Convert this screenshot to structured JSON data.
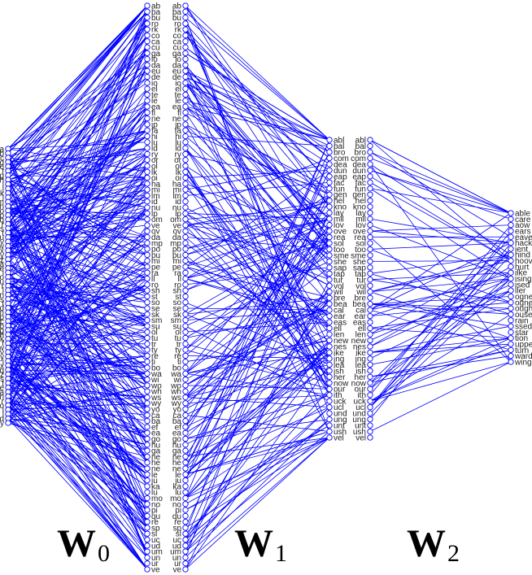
{
  "accent_color": "#0000ff",
  "captions": [
    {
      "main": "W",
      "sub": "0"
    },
    {
      "main": "W",
      "sub": "1"
    },
    {
      "main": "W",
      "sub": "2"
    }
  ],
  "layers": [
    {
      "labels": [
        "a",
        "b",
        "c",
        "d",
        "e",
        "f",
        "g",
        "h",
        "i",
        "j",
        "k",
        "l",
        "m",
        "n",
        "o",
        "p",
        "q",
        "r",
        "s",
        "t",
        "u",
        "v",
        "w",
        "x",
        "y",
        "z",
        "a",
        "e",
        "i",
        "o",
        "u",
        "r",
        "l",
        "n",
        "s",
        "t",
        "d",
        "m",
        "p",
        "c",
        "b",
        "g",
        "h",
        "k",
        "f",
        "w",
        "v",
        "y",
        "j",
        "x",
        "q",
        "z",
        "s",
        "t",
        "e",
        "a",
        "n",
        "r",
        "o",
        "i",
        "l",
        "d",
        "y"
      ],
      "side": "left"
    },
    {
      "labels": [
        "ab",
        "ba",
        "bu",
        "ro",
        "rk",
        "co",
        "ca",
        "cu",
        "ga",
        "lo",
        "da",
        "eu",
        "de",
        "io",
        "el",
        "te",
        "le",
        "ea",
        "fl",
        "ne",
        "ip",
        "fa",
        "hi",
        "lu",
        "ld",
        "ry",
        "or",
        "ol",
        "lk",
        "oi",
        "ha",
        "mi",
        "lm",
        "id",
        "nu",
        "lp",
        "om",
        "ve",
        "ov",
        "da",
        "mp",
        "po",
        "pu",
        "mi",
        "pe",
        "ra",
        "ll",
        "ro",
        "sh",
        "st",
        "so",
        "se",
        "sk",
        "sm",
        "su",
        "ol",
        "tu",
        "tr",
        "ty",
        "re",
        "ti",
        "bo",
        "wa",
        "wi",
        "wo",
        "wh",
        "ws",
        "wy",
        "yo",
        "ca",
        "ba",
        "ef",
        "ea",
        "go",
        "hu",
        "ga",
        "ne",
        "he",
        "ne",
        "le",
        "ju",
        "ka",
        "lu",
        "mo",
        "no",
        "pi",
        "qu",
        "re",
        "sp",
        "sl",
        "uc",
        "ud",
        "um",
        "un",
        "ur",
        "ve"
      ],
      "side": "both"
    },
    {
      "labels": [
        "abl",
        "bal",
        "bro",
        "com",
        "dea",
        "dun",
        "eap",
        "fac",
        "fun",
        "gen",
        "hel",
        "kno",
        "lay",
        "mil",
        "lov",
        "ove",
        "rea",
        "sol",
        "too",
        "sme",
        "she",
        "sap",
        "tap",
        "tur",
        "vol",
        "wil",
        "bre",
        "bea",
        "cal",
        "ear",
        "eas",
        "ell",
        "len",
        "new",
        "nes",
        "ike",
        "ing",
        "lea",
        "ish",
        "her",
        "now",
        "our",
        "ith",
        "uck",
        "ucl",
        "und",
        "ung",
        "unt",
        "ush",
        "vel"
      ],
      "side": "both"
    },
    {
      "labels": [
        "able",
        "care",
        "aow",
        "ears",
        "eave",
        "hack",
        "ient",
        "hind",
        "hoov",
        "hurt",
        "ilke",
        "ising",
        "ised",
        "ller",
        "ogne",
        "ogne",
        "ough",
        "ouse",
        "rain",
        "ssed",
        "star",
        "tion",
        "uppe",
        "turn",
        "ward",
        "wing"
      ],
      "side": "right"
    }
  ],
  "edges": [
    {
      "from": 0,
      "to": 1,
      "count": 380
    },
    {
      "from": 1,
      "to": 2,
      "count": 210
    },
    {
      "from": 2,
      "to": 3,
      "count": 72
    }
  ]
}
